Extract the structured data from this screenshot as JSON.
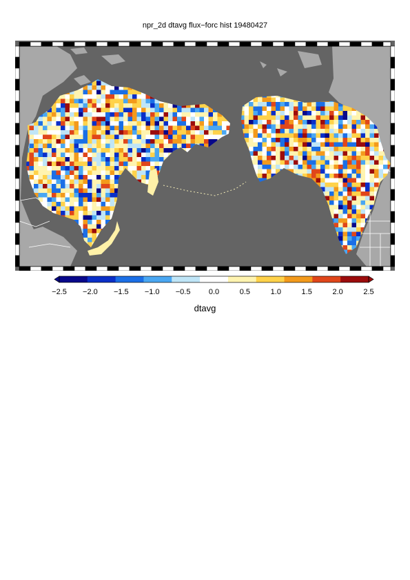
{
  "title": "npr_2d dtavg flux−forc hist 19480427",
  "colorbar": {
    "label": "dtavg",
    "ticks": [
      "−2.5",
      "−2.0",
      "−1.5",
      "−1.0",
      "−0.5",
      "0.0",
      "0.5",
      "1.0",
      "1.5",
      "2.0",
      "2.5"
    ],
    "min": -2.5,
    "max": 2.5,
    "colors": [
      "#08088a",
      "#0a2fc8",
      "#1b6fe6",
      "#4aa7f2",
      "#bfe5f7",
      "#ffffff",
      "#fff4b0",
      "#ffd24a",
      "#f39a1c",
      "#e0461a",
      "#9c0c0c"
    ]
  },
  "map": {
    "ocean_color": "#646464",
    "land_color": "#a8a8a8",
    "border_color": "#ffffff"
  }
}
